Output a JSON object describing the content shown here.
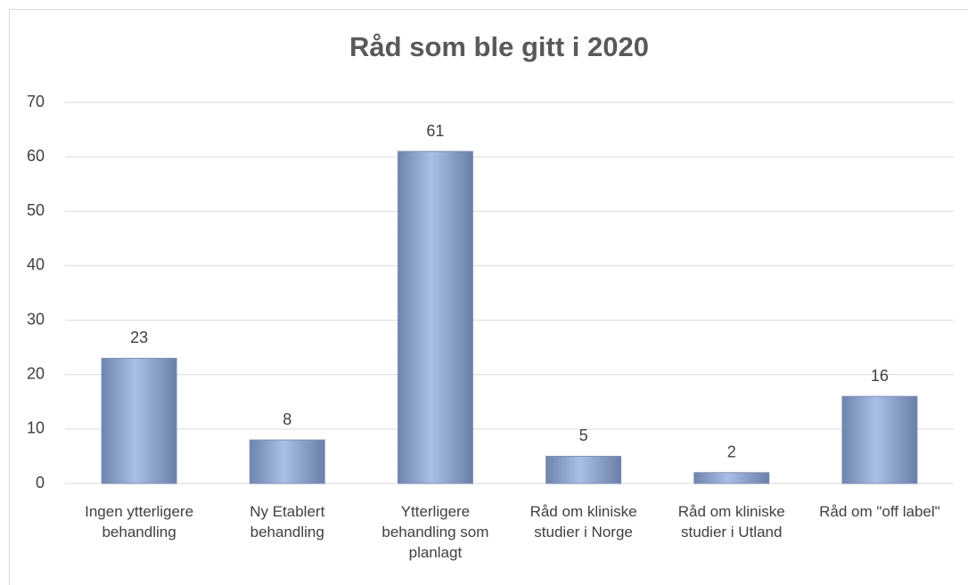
{
  "chart_data": {
    "type": "bar",
    "title": "Råd som ble gitt i 2020",
    "categories": [
      "Ingen ytterligere behandling",
      "Ny Etablert behandling",
      "Ytterligere behandling som planlagt",
      "Råd om kliniske studier i Norge",
      "Råd om kliniske studier i Utland",
      "Råd om \"off label\""
    ],
    "values": [
      23,
      8,
      61,
      5,
      2,
      16
    ],
    "color": "#8fa6d4",
    "ylim": [
      0,
      70
    ],
    "yticks": [
      0,
      10,
      20,
      30,
      40,
      50,
      60,
      70
    ],
    "grid": true
  }
}
